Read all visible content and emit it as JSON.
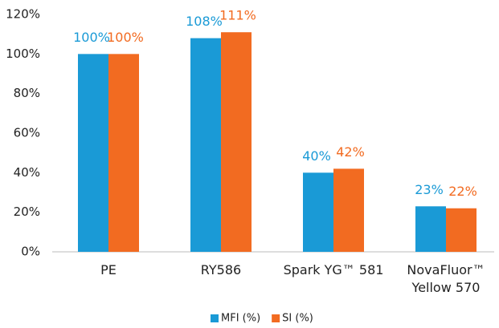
{
  "chart_data": {
    "type": "bar",
    "categories": [
      "PE",
      "RY586",
      "Spark YG™ 581",
      "NovaFluor™ Yellow 570"
    ],
    "series": [
      {
        "name": "MFI (%)",
        "color": "#1a9ad6",
        "values": [
          100,
          108,
          40,
          23
        ],
        "value_labels": [
          "100%",
          "108%",
          "40%",
          "23%"
        ]
      },
      {
        "name": "SI (%)",
        "color": "#f26b21",
        "values": [
          100,
          111,
          42,
          22
        ],
        "value_labels": [
          "100%",
          "111%",
          "42%",
          "22%"
        ]
      }
    ],
    "ylim": [
      0,
      120
    ],
    "yticks": [
      {
        "value": 0,
        "label": "0%"
      },
      {
        "value": 20,
        "label": "20%"
      },
      {
        "value": 40,
        "label": "40%"
      },
      {
        "value": 60,
        "label": "60%"
      },
      {
        "value": 80,
        "label": "80%"
      },
      {
        "value": 100,
        "label": "100%"
      },
      {
        "value": 120,
        "label": "120%"
      }
    ],
    "grid": false,
    "legend": "bottom"
  }
}
